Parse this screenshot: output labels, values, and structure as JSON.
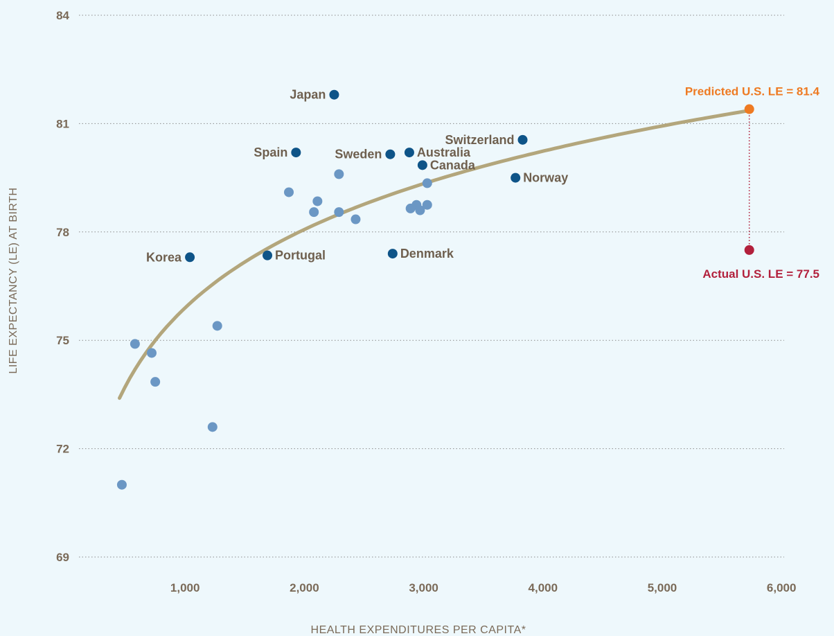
{
  "colors": {
    "background": "#eef8fc",
    "highlight_point": "#0e5488",
    "other_point": "#6b97c4",
    "trend_line": "#b3a67c",
    "predicted": "#ee7a22",
    "actual": "#b2203c",
    "grid": "#8a8a8a",
    "text": "#7a6a58"
  },
  "chart_data": {
    "type": "scatter",
    "xlabel": "HEALTH EXPENDITURES PER CAPITA*",
    "ylabel": "LIFE EXPECTANCY (LE) AT BIRTH",
    "xlim": [
      0,
      6000
    ],
    "ylim": [
      69,
      84
    ],
    "x_ticks": [
      {
        "value": 1000,
        "label": "1,000"
      },
      {
        "value": 2000,
        "label": "2,000"
      },
      {
        "value": 3000,
        "label": "3,000"
      },
      {
        "value": 4000,
        "label": "4,000"
      },
      {
        "value": 5000,
        "label": "5,000"
      },
      {
        "value": 6000,
        "label": "6,000"
      }
    ],
    "y_ticks": [
      {
        "value": 84,
        "label": "84"
      },
      {
        "value": 81,
        "label": "81"
      },
      {
        "value": 78,
        "label": "78"
      },
      {
        "value": 75,
        "label": "75"
      },
      {
        "value": 72,
        "label": "72"
      },
      {
        "value": 69,
        "label": "69"
      }
    ],
    "grid": "horizontal-dotted",
    "labeled_countries": [
      {
        "name": "Japan",
        "x": 2250,
        "y": 81.8,
        "label_side": "left"
      },
      {
        "name": "Spain",
        "x": 1930,
        "y": 80.2,
        "label_side": "left"
      },
      {
        "name": "Sweden",
        "x": 2720,
        "y": 80.15,
        "label_side": "left"
      },
      {
        "name": "Australia",
        "x": 2880,
        "y": 80.2,
        "label_side": "right"
      },
      {
        "name": "Canada",
        "x": 2990,
        "y": 79.85,
        "label_side": "right"
      },
      {
        "name": "Switzerland",
        "x": 3830,
        "y": 80.55,
        "label_side": "left"
      },
      {
        "name": "Norway",
        "x": 3770,
        "y": 79.5,
        "label_side": "right"
      },
      {
        "name": "Korea",
        "x": 1040,
        "y": 77.3,
        "label_side": "left"
      },
      {
        "name": "Portugal",
        "x": 1690,
        "y": 77.35,
        "label_side": "right"
      },
      {
        "name": "Denmark",
        "x": 2740,
        "y": 77.4,
        "label_side": "right"
      }
    ],
    "other_countries": [
      {
        "x": 2290,
        "y": 79.6
      },
      {
        "x": 1870,
        "y": 79.1
      },
      {
        "x": 2110,
        "y": 78.85
      },
      {
        "x": 2080,
        "y": 78.55
      },
      {
        "x": 2290,
        "y": 78.55
      },
      {
        "x": 2430,
        "y": 78.35
      },
      {
        "x": 3030,
        "y": 79.35
      },
      {
        "x": 2940,
        "y": 78.75
      },
      {
        "x": 3030,
        "y": 78.75
      },
      {
        "x": 2890,
        "y": 78.65
      },
      {
        "x": 2970,
        "y": 78.6
      },
      {
        "x": 1270,
        "y": 75.4
      },
      {
        "x": 580,
        "y": 74.9
      },
      {
        "x": 720,
        "y": 74.65
      },
      {
        "x": 750,
        "y": 73.85
      },
      {
        "x": 1230,
        "y": 72.6
      },
      {
        "x": 470,
        "y": 71.0
      }
    ],
    "trend_line": {
      "type": "logarithmic",
      "x_range": [
        450,
        5730
      ],
      "points": [
        {
          "x": 450,
          "y": 73.4
        },
        {
          "x": 1000,
          "y": 75.9
        },
        {
          "x": 2000,
          "y": 78.1
        },
        {
          "x": 3000,
          "y": 79.3
        },
        {
          "x": 4000,
          "y": 80.2
        },
        {
          "x": 5730,
          "y": 81.4
        }
      ]
    },
    "us": {
      "x": 5730,
      "predicted": 81.4,
      "actual": 77.5,
      "predicted_label": "Predicted U.S. LE = 81.4",
      "actual_label": "Actual U.S. LE = 77.5"
    }
  }
}
